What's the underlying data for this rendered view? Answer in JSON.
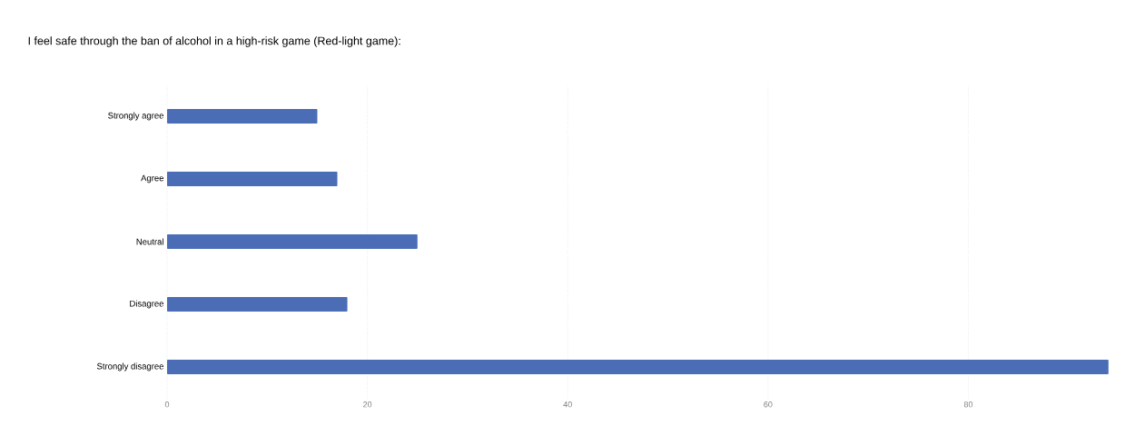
{
  "chart_data": {
    "type": "bar",
    "orientation": "horizontal",
    "title": "I feel safe through the ban of alcohol in a high-risk game (Red-light game):",
    "categories": [
      "Strongly agree",
      "Agree",
      "Neutral",
      "Disagree",
      "Strongly disagree"
    ],
    "values": [
      15,
      17,
      25,
      18,
      94
    ],
    "color": "#4a6db5",
    "xlim": [
      0,
      94
    ],
    "xticks": [
      0,
      20,
      40,
      60,
      80
    ],
    "grid": "x"
  }
}
